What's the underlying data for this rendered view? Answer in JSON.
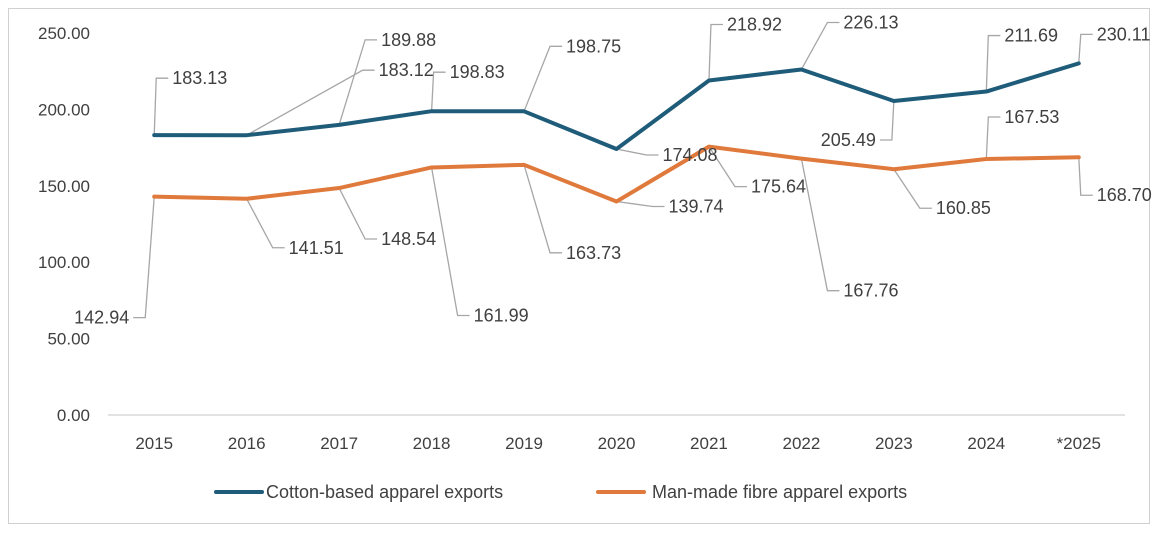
{
  "chart_data": {
    "type": "line",
    "categories": [
      "2015",
      "2016",
      "2017",
      "2018",
      "2019",
      "2020",
      "2021",
      "2022",
      "2023",
      "2024",
      "*2025"
    ],
    "series": [
      {
        "name": "Cotton-based apparel exports",
        "color": "#1f5c7a",
        "values": [
          183.13,
          183.12,
          189.88,
          198.83,
          198.75,
          174.08,
          218.92,
          226.13,
          205.49,
          211.69,
          230.11
        ]
      },
      {
        "name": "Man-made fibre apparel exports",
        "color": "#e07a3c",
        "values": [
          142.94,
          141.51,
          148.54,
          161.99,
          163.73,
          139.74,
          175.64,
          167.76,
          160.85,
          167.53,
          168.7
        ]
      }
    ],
    "yticks": [
      "0.00",
      "50.00",
      "100.00",
      "150.00",
      "200.00",
      "250.00"
    ],
    "ylim": [
      0,
      250
    ],
    "title": "",
    "xlabel": "",
    "ylabel": "",
    "legend_position": "bottom",
    "grid": false
  }
}
